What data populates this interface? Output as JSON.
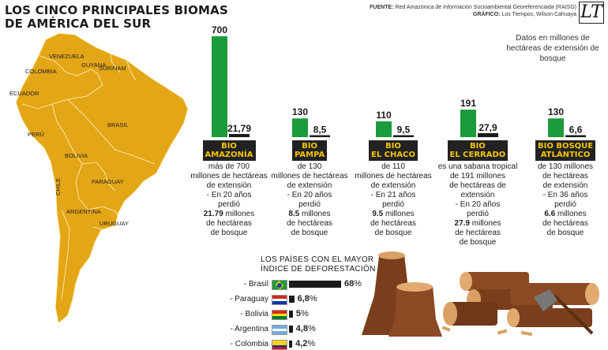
{
  "header": {
    "title_line1": "LOS CINCO PRINCIPALES BIOMAS",
    "title_line2": "DE AMÉRICA DEL SUR",
    "source_label": "FUENTE:",
    "source_text": "Red Amazónica de Información Socioambiental Georeferenciada (RAISG)",
    "graphic_label": "GRÁFICO:",
    "graphic_text": "Los Tiempos, Wilson Cahuaya",
    "logo_text": "LT"
  },
  "note": "Datos en millones de hectáreas de extensión de bosque",
  "map_labels": [
    "VENEZUELA",
    "COLOMBIA",
    "GUYANA",
    "SURINAM",
    "ECUADOR",
    "BRASIL",
    "PERÚ",
    "BOLIVIA",
    "PARAGUAY",
    "CHILE",
    "ARGENTINA",
    "URUGUAY"
  ],
  "chart_data": {
    "type": "bar",
    "categories": [
      "BIO AMAZONÍA",
      "BIO PAMPA",
      "BIO EL CHACO",
      "BIO EL CERRADO",
      "BIO BOSQUE ATLÁNTICO"
    ],
    "series": [
      {
        "values": [
          700,
          130,
          110,
          191,
          130
        ],
        "labels": [
          "700",
          "130",
          "110",
          "191",
          "130"
        ],
        "color": "#1a9b3c"
      },
      {
        "values": [
          21.79,
          8.5,
          9.5,
          27.9,
          6.6
        ],
        "labels": [
          "21,79",
          "8,5",
          "9,5",
          "27,9",
          "6,6"
        ],
        "color": "#1a1a1a"
      }
    ]
  },
  "biomes": [
    {
      "line1": "BIO",
      "line2": "AMAZONÍA",
      "d1": "más de 700",
      "d2": "millones de hectáreas",
      "d3": "de extensión",
      "d4": "- En 20 años",
      "d5": "perdió",
      "bold": "21.79",
      "d6": "millones",
      "d7": "de hectáreas",
      "d8": "de bosque"
    },
    {
      "line1": "BIO",
      "line2": "PAMPA",
      "d1": "de 130",
      "d2": "millones de hectáreas",
      "d3": "de extensión",
      "d4": "- En 20 años",
      "d5": "perdió",
      "bold": "8.5",
      "d6": "millones",
      "d7": "de hectáreas",
      "d8": "de bosque"
    },
    {
      "line1": "BIO",
      "line2": "EL CHACO",
      "d1": "de 110",
      "d2": "millones de hectáreas",
      "d3": "de extensión",
      "d4": "- En 21 años",
      "d5": "perdió",
      "bold": "9.5",
      "d6": "millones",
      "d7": "de hectáreas",
      "d8": "de bosque"
    },
    {
      "line1": "BIO",
      "line2": "EL CERRADO",
      "d1": "es una sabana tropical",
      "d2": "de 191 millones",
      "d3": "de hectáreas de extensión",
      "d4": "- En 20 años",
      "d5": "perdió",
      "bold": "27.9",
      "d6": "millones",
      "d7": "de hectáreas",
      "d8": "de bosque"
    },
    {
      "line1": "BIO BOSQUE",
      "line2": "ATLÁNTICO",
      "d1": "de 130 millones",
      "d2": "de hectáreas",
      "d3": "de extensión",
      "d4": "- En 36 años",
      "d5": "perdió",
      "bold": "6.6",
      "d6": "millones",
      "d7": "de hectáreas",
      "d8": "de bosque"
    }
  ],
  "deforestation": {
    "title_line1": "LOS PAÍSES CON EL MAYOR",
    "title_line2": "ÍNDICE DE DEFORESTACIÓN",
    "rows": [
      {
        "name": "Brasil",
        "value": 68,
        "num": "68",
        "pct": "%"
      },
      {
        "name": "Paraguay",
        "value": 6.8,
        "num": "6,8",
        "pct": "%"
      },
      {
        "name": "Bolivia",
        "value": 5,
        "num": "5",
        "pct": "%"
      },
      {
        "name": "Argentina",
        "value": 4.8,
        "num": "4,8",
        "pct": "%"
      },
      {
        "name": "Colombia",
        "value": 4.2,
        "num": "4,2",
        "pct": "%"
      }
    ]
  },
  "colors": {
    "map": "#e3a617",
    "map_border": "#fff3c0",
    "green": "#1a9b3c",
    "badge_bg": "#222222",
    "badge_text": "#f3c400",
    "wood": "#8b4a24",
    "wood_light": "#d9a066"
  }
}
